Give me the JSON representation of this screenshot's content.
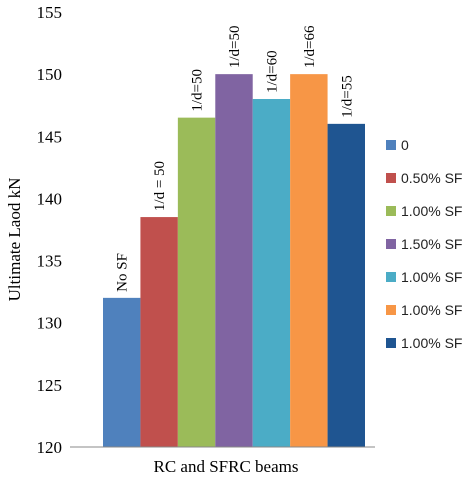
{
  "chart_data": {
    "type": "bar",
    "title": "",
    "xlabel": "RC and SFRC beams",
    "ylabel": "Ultimate Laod kN",
    "ylim": [
      120,
      155
    ],
    "yticks": [
      120,
      125,
      130,
      135,
      140,
      145,
      150,
      155
    ],
    "grid": false,
    "legend_position": "right",
    "series": [
      {
        "name": "0",
        "value": 132,
        "annotation": "No SF",
        "color": "#4f81bd"
      },
      {
        "name": "0.50% SF",
        "value": 138.5,
        "annotation": "1/d = 50",
        "color": "#c0504d"
      },
      {
        "name": "1.00% SF",
        "value": 146.5,
        "annotation": "1/d=50",
        "color": "#9bbb59"
      },
      {
        "name": "1.50% SF",
        "value": 150,
        "annotation": "1/d=50",
        "color": "#8064a2"
      },
      {
        "name": "1.00% SF",
        "value": 148,
        "annotation": "1/d=60",
        "color": "#4bacc6"
      },
      {
        "name": "1.00% SF",
        "value": 150,
        "annotation": "1/d=66",
        "color": "#f79646"
      },
      {
        "name": "1.00% SF",
        "value": 146,
        "annotation": "1/d=55",
        "color": "#1f5591"
      }
    ]
  }
}
